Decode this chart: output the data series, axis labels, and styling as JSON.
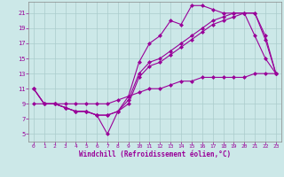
{
  "xlabel": "Windchill (Refroidissement éolien,°C)",
  "bg_color": "#cce8e8",
  "line_color": "#990099",
  "grid_color": "#aacccc",
  "xlim": [
    -0.5,
    23.5
  ],
  "ylim": [
    4.0,
    22.5
  ],
  "xticks": [
    0,
    1,
    2,
    3,
    4,
    5,
    6,
    7,
    8,
    9,
    10,
    11,
    12,
    13,
    14,
    15,
    16,
    17,
    18,
    19,
    20,
    21,
    22,
    23
  ],
  "yticks": [
    5,
    7,
    9,
    11,
    13,
    15,
    17,
    19,
    21
  ],
  "line1_x": [
    0,
    1,
    2,
    3,
    4,
    5,
    6,
    7,
    8,
    9,
    10,
    11,
    12,
    13,
    14,
    15,
    16,
    17,
    18,
    19,
    20,
    21,
    22,
    23
  ],
  "line1_y": [
    11,
    9,
    9,
    8.5,
    8,
    8,
    7.5,
    5,
    8,
    10,
    14.5,
    17,
    18,
    20,
    19.5,
    22,
    22,
    21.5,
    21,
    21,
    21,
    18,
    15,
    13
  ],
  "line2_x": [
    0,
    1,
    2,
    3,
    4,
    5,
    6,
    7,
    8,
    9,
    10,
    11,
    12,
    13,
    14,
    15,
    16,
    17,
    18,
    19,
    20,
    21,
    22,
    23
  ],
  "line2_y": [
    11,
    9,
    9,
    8.5,
    8,
    8,
    7.5,
    7.5,
    8,
    9.5,
    13,
    14.5,
    15,
    16,
    17,
    18,
    19,
    20,
    20.5,
    21,
    21,
    21,
    18,
    13
  ],
  "line3_x": [
    0,
    1,
    2,
    3,
    4,
    5,
    6,
    7,
    8,
    9,
    10,
    11,
    12,
    13,
    14,
    15,
    16,
    17,
    18,
    19,
    20,
    21,
    22,
    23
  ],
  "line3_y": [
    9,
    9,
    9,
    9,
    9,
    9,
    9,
    9,
    9.5,
    10,
    10.5,
    11,
    11,
    11.5,
    12,
    12,
    12.5,
    12.5,
    12.5,
    12.5,
    12.5,
    13,
    13,
    13
  ],
  "line4_x": [
    0,
    1,
    2,
    3,
    4,
    5,
    6,
    7,
    8,
    9,
    10,
    11,
    12,
    13,
    14,
    15,
    16,
    17,
    18,
    19,
    20,
    21,
    22,
    23
  ],
  "line4_y": [
    11,
    9,
    9,
    8.5,
    8,
    8,
    7.5,
    7.5,
    8,
    9,
    12.5,
    14,
    14.5,
    15.5,
    16.5,
    17.5,
    18.5,
    19.5,
    20,
    20.5,
    21,
    21,
    17.5,
    13
  ]
}
